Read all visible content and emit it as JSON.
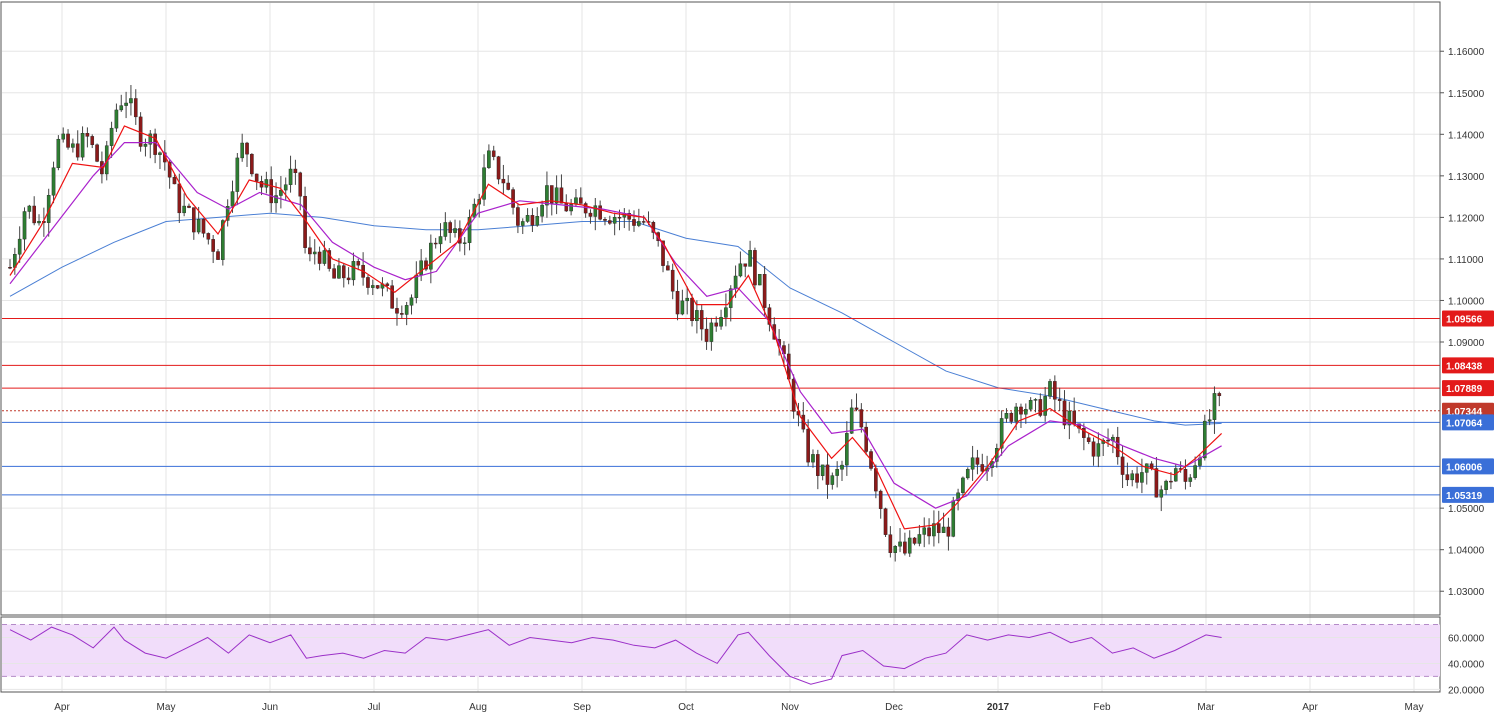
{
  "colors": {
    "bull_candle": "#2e7d32",
    "bear_candle": "#8b1a1a",
    "ema_fast": "#ee1111",
    "ema_slow": "#aa22cc",
    "sma_long": "#4a7fd4",
    "resistance": "#e31a1a",
    "support": "#3a6fd8",
    "current_price": "#c0392b",
    "rsi_line": "#9b30c8",
    "rsi_band": "#f1ddfa"
  },
  "chart_data": [
    {
      "type": "candlestick",
      "pair_hint": "price panel",
      "ylim": [
        1.025,
        1.168
      ],
      "y_ticks": [
        "1.16000",
        "1.15000",
        "1.14000",
        "1.13000",
        "1.12000",
        "1.11000",
        "1.10000",
        "1.09000",
        "1.05000",
        "1.04000",
        "1.03000"
      ],
      "x_month_labels": [
        "Apr",
        "May",
        "Jun",
        "Jul",
        "Aug",
        "Sep",
        "Oct",
        "Nov",
        "Dec",
        "2017",
        "Feb",
        "Mar",
        "Apr",
        "May"
      ],
      "x_month_positions": [
        0.5,
        1.5,
        2.5,
        3.5,
        4.5,
        5.5,
        6.5,
        7.5,
        8.5,
        9.5,
        10.5,
        11.5,
        12.5,
        13.5
      ],
      "price_path": [
        [
          0.0,
          1.108
        ],
        [
          0.15,
          1.123
        ],
        [
          0.3,
          1.118
        ],
        [
          0.45,
          1.138
        ],
        [
          0.6,
          1.136
        ],
        [
          0.75,
          1.139
        ],
        [
          0.9,
          1.13
        ],
        [
          1.0,
          1.145
        ],
        [
          1.1,
          1.15
        ],
        [
          1.25,
          1.14
        ],
        [
          1.4,
          1.138
        ],
        [
          1.5,
          1.133
        ],
        [
          1.6,
          1.124
        ],
        [
          1.8,
          1.118
        ],
        [
          2.0,
          1.112
        ],
        [
          2.1,
          1.126
        ],
        [
          2.25,
          1.138
        ],
        [
          2.4,
          1.128
        ],
        [
          2.55,
          1.125
        ],
        [
          2.7,
          1.13
        ],
        [
          2.8,
          1.125
        ],
        [
          2.85,
          1.108
        ],
        [
          2.95,
          1.113
        ],
        [
          3.1,
          1.105
        ],
        [
          3.3,
          1.107
        ],
        [
          3.5,
          1.105
        ],
        [
          3.7,
          1.099
        ],
        [
          3.85,
          1.1
        ],
        [
          4.0,
          1.11
        ],
        [
          4.15,
          1.118
        ],
        [
          4.3,
          1.114
        ],
        [
          4.4,
          1.117
        ],
        [
          4.6,
          1.134
        ],
        [
          4.75,
          1.129
        ],
        [
          4.9,
          1.118
        ],
        [
          5.0,
          1.12
        ],
        [
          5.15,
          1.127
        ],
        [
          5.3,
          1.123
        ],
        [
          5.45,
          1.122
        ],
        [
          5.6,
          1.123
        ],
        [
          5.75,
          1.121
        ],
        [
          5.9,
          1.12
        ],
        [
          6.1,
          1.119
        ],
        [
          6.25,
          1.112
        ],
        [
          6.4,
          1.1
        ],
        [
          6.55,
          1.097
        ],
        [
          6.7,
          1.092
        ],
        [
          6.85,
          1.099
        ],
        [
          7.0,
          1.109
        ],
        [
          7.1,
          1.111
        ],
        [
          7.2,
          1.104
        ],
        [
          7.35,
          1.093
        ],
        [
          7.5,
          1.079
        ],
        [
          7.65,
          1.064
        ],
        [
          7.8,
          1.058
        ],
        [
          7.9,
          1.056
        ],
        [
          8.0,
          1.06
        ],
        [
          8.1,
          1.074
        ],
        [
          8.2,
          1.069
        ],
        [
          8.3,
          1.059
        ],
        [
          8.45,
          1.042
        ],
        [
          8.6,
          1.039
        ],
        [
          8.75,
          1.043
        ],
        [
          8.9,
          1.045
        ],
        [
          9.0,
          1.044
        ],
        [
          9.1,
          1.051
        ],
        [
          9.25,
          1.06
        ],
        [
          9.4,
          1.062
        ],
        [
          9.55,
          1.07
        ],
        [
          9.7,
          1.076
        ],
        [
          9.85,
          1.073
        ],
        [
          10.0,
          1.078
        ],
        [
          10.15,
          1.072
        ],
        [
          10.3,
          1.067
        ],
        [
          10.45,
          1.064
        ],
        [
          10.6,
          1.067
        ],
        [
          10.75,
          1.057
        ],
        [
          10.9,
          1.059
        ],
        [
          11.0,
          1.056
        ],
        [
          11.1,
          1.054
        ],
        [
          11.2,
          1.06
        ],
        [
          11.3,
          1.056
        ],
        [
          11.4,
          1.062
        ],
        [
          11.5,
          1.069
        ],
        [
          11.6,
          1.076
        ],
        [
          11.65,
          1.0734
        ]
      ],
      "ema_fast_path": [
        [
          0.0,
          1.106
        ],
        [
          0.3,
          1.118
        ],
        [
          0.6,
          1.133
        ],
        [
          0.9,
          1.132
        ],
        [
          1.1,
          1.142
        ],
        [
          1.4,
          1.139
        ],
        [
          1.7,
          1.125
        ],
        [
          2.0,
          1.116
        ],
        [
          2.3,
          1.129
        ],
        [
          2.6,
          1.127
        ],
        [
          2.85,
          1.119
        ],
        [
          3.1,
          1.11
        ],
        [
          3.4,
          1.107
        ],
        [
          3.7,
          1.102
        ],
        [
          4.0,
          1.108
        ],
        [
          4.3,
          1.114
        ],
        [
          4.6,
          1.128
        ],
        [
          4.9,
          1.123
        ],
        [
          5.2,
          1.124
        ],
        [
          5.5,
          1.123
        ],
        [
          5.8,
          1.121
        ],
        [
          6.1,
          1.12
        ],
        [
          6.3,
          1.113
        ],
        [
          6.6,
          1.099
        ],
        [
          6.9,
          1.099
        ],
        [
          7.1,
          1.106
        ],
        [
          7.35,
          1.092
        ],
        [
          7.6,
          1.072
        ],
        [
          7.9,
          1.062
        ],
        [
          8.1,
          1.067
        ],
        [
          8.3,
          1.061
        ],
        [
          8.6,
          1.045
        ],
        [
          8.9,
          1.046
        ],
        [
          9.1,
          1.051
        ],
        [
          9.4,
          1.06
        ],
        [
          9.7,
          1.071
        ],
        [
          10.0,
          1.074
        ],
        [
          10.3,
          1.069
        ],
        [
          10.6,
          1.065
        ],
        [
          10.9,
          1.06
        ],
        [
          11.2,
          1.058
        ],
        [
          11.4,
          1.062
        ],
        [
          11.65,
          1.068
        ]
      ],
      "ema_slow_path": [
        [
          0.0,
          1.104
        ],
        [
          0.4,
          1.117
        ],
        [
          0.8,
          1.13
        ],
        [
          1.1,
          1.138
        ],
        [
          1.4,
          1.138
        ],
        [
          1.8,
          1.126
        ],
        [
          2.1,
          1.122
        ],
        [
          2.4,
          1.126
        ],
        [
          2.8,
          1.123
        ],
        [
          3.1,
          1.114
        ],
        [
          3.5,
          1.108
        ],
        [
          3.8,
          1.105
        ],
        [
          4.1,
          1.107
        ],
        [
          4.5,
          1.121
        ],
        [
          4.9,
          1.124
        ],
        [
          5.3,
          1.123
        ],
        [
          5.7,
          1.122
        ],
        [
          6.1,
          1.12
        ],
        [
          6.4,
          1.109
        ],
        [
          6.7,
          1.101
        ],
        [
          7.0,
          1.103
        ],
        [
          7.3,
          1.095
        ],
        [
          7.6,
          1.078
        ],
        [
          7.9,
          1.068
        ],
        [
          8.2,
          1.069
        ],
        [
          8.5,
          1.056
        ],
        [
          8.9,
          1.05
        ],
        [
          9.2,
          1.053
        ],
        [
          9.6,
          1.065
        ],
        [
          10.0,
          1.071
        ],
        [
          10.3,
          1.07
        ],
        [
          10.7,
          1.065
        ],
        [
          11.0,
          1.062
        ],
        [
          11.3,
          1.06
        ],
        [
          11.65,
          1.065
        ]
      ],
      "sma_long_path": [
        [
          0.0,
          1.101
        ],
        [
          0.5,
          1.108
        ],
        [
          1.0,
          1.114
        ],
        [
          1.5,
          1.119
        ],
        [
          2.0,
          1.12
        ],
        [
          2.5,
          1.121
        ],
        [
          3.0,
          1.12
        ],
        [
          3.5,
          1.118
        ],
        [
          4.0,
          1.117
        ],
        [
          4.5,
          1.117
        ],
        [
          5.0,
          1.118
        ],
        [
          5.5,
          1.119
        ],
        [
          6.0,
          1.119
        ],
        [
          6.5,
          1.115
        ],
        [
          7.0,
          1.113
        ],
        [
          7.5,
          1.103
        ],
        [
          8.0,
          1.097
        ],
        [
          8.5,
          1.09
        ],
        [
          9.0,
          1.083
        ],
        [
          9.5,
          1.079
        ],
        [
          10.0,
          1.077
        ],
        [
          10.5,
          1.074
        ],
        [
          11.0,
          1.071
        ],
        [
          11.3,
          1.07
        ],
        [
          11.65,
          1.0704
        ]
      ],
      "horizontal_levels": [
        {
          "label": "1.09566",
          "value": 1.09566,
          "kind": "resistance"
        },
        {
          "label": "1.08438",
          "value": 1.08438,
          "kind": "resistance"
        },
        {
          "label": "1.07889",
          "value": 1.07889,
          "kind": "resistance"
        },
        {
          "label": "1.07344",
          "value": 1.07344,
          "kind": "current"
        },
        {
          "label": "1.07064",
          "value": 1.07064,
          "kind": "support"
        },
        {
          "label": "1.06006",
          "value": 1.06006,
          "kind": "support"
        },
        {
          "label": "1.05319",
          "value": 1.05319,
          "kind": "support"
        }
      ]
    },
    {
      "type": "line",
      "pair_hint": "RSI panel",
      "ylim": [
        18,
        75
      ],
      "y_ticks": [
        "60.0000",
        "40.0000",
        "20.0000"
      ],
      "band": [
        30,
        70
      ],
      "x": [
        0.0,
        0.2,
        0.4,
        0.6,
        0.8,
        1.0,
        1.1,
        1.3,
        1.5,
        1.7,
        1.9,
        2.1,
        2.3,
        2.5,
        2.7,
        2.85,
        3.0,
        3.2,
        3.4,
        3.6,
        3.8,
        4.0,
        4.2,
        4.4,
        4.6,
        4.8,
        5.0,
        5.2,
        5.4,
        5.6,
        5.8,
        6.0,
        6.2,
        6.4,
        6.6,
        6.8,
        7.0,
        7.1,
        7.3,
        7.5,
        7.7,
        7.9,
        8.0,
        8.2,
        8.4,
        8.6,
        8.8,
        9.0,
        9.2,
        9.4,
        9.6,
        9.8,
        10.0,
        10.2,
        10.4,
        10.6,
        10.8,
        11.0,
        11.2,
        11.4,
        11.5,
        11.65
      ],
      "values": [
        66,
        58,
        68,
        62,
        52,
        68,
        58,
        48,
        44,
        52,
        60,
        48,
        62,
        56,
        62,
        44,
        46,
        48,
        44,
        50,
        48,
        60,
        58,
        62,
        66,
        54,
        60,
        58,
        56,
        60,
        58,
        54,
        52,
        58,
        48,
        40,
        62,
        64,
        46,
        30,
        24,
        28,
        46,
        50,
        38,
        36,
        44,
        48,
        62,
        58,
        62,
        60,
        64,
        56,
        60,
        48,
        52,
        44,
        50,
        58,
        62,
        60
      ]
    }
  ]
}
